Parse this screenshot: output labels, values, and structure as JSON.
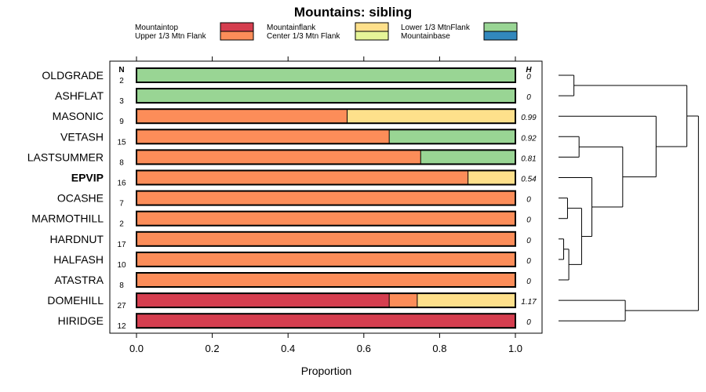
{
  "chart_data": {
    "type": "bar",
    "orientation": "horizontal-stacked",
    "title": "Mountains: sibling",
    "xlabel": "Proportion",
    "xlim": [
      0,
      1
    ],
    "xticks": [
      0.0,
      0.2,
      0.4,
      0.6,
      0.8,
      1.0
    ],
    "xtick_labels": [
      "0.0",
      "0.2",
      "0.4",
      "0.6",
      "0.8",
      "1.0"
    ],
    "n_header": "N",
    "h_header": "H",
    "highlight": "EPVIP",
    "legend_position": "top",
    "series": [
      {
        "name": "Mountaintop",
        "color": "#d53e4f"
      },
      {
        "name": "Upper 1/3 Mtn Flank",
        "color": "#fc8d59"
      },
      {
        "name": "Mountainflank",
        "color": "#fee08b"
      },
      {
        "name": "Center 1/3 Mtn Flank",
        "color": "#e6f598"
      },
      {
        "name": "Lower 1/3 MtnFlank",
        "color": "#99d594"
      },
      {
        "name": "Mountainbase",
        "color": "#3288bd"
      }
    ],
    "rows": [
      {
        "label": "OLDGRADE",
        "n": "2",
        "h": "0",
        "values": [
          0,
          0,
          0,
          0,
          1,
          0
        ]
      },
      {
        "label": "ASHFLAT",
        "n": "3",
        "h": "0",
        "values": [
          0,
          0,
          0,
          0,
          1,
          0
        ]
      },
      {
        "label": "MASONIC",
        "n": "9",
        "h": "0.99",
        "values": [
          0,
          0.556,
          0.444,
          0,
          0,
          0
        ]
      },
      {
        "label": "VETASH",
        "n": "15",
        "h": "0.92",
        "values": [
          0,
          0.667,
          0,
          0,
          0.333,
          0
        ]
      },
      {
        "label": "LASTSUMMER",
        "n": "8",
        "h": "0.81",
        "values": [
          0,
          0.75,
          0,
          0,
          0.25,
          0
        ]
      },
      {
        "label": "EPVIP",
        "n": "16",
        "h": "0.54",
        "values": [
          0,
          0.875,
          0.125,
          0,
          0,
          0
        ]
      },
      {
        "label": "OCASHE",
        "n": "7",
        "h": "0",
        "values": [
          0,
          1,
          0,
          0,
          0,
          0
        ]
      },
      {
        "label": "MARMOTHILL",
        "n": "2",
        "h": "0",
        "values": [
          0,
          1,
          0,
          0,
          0,
          0
        ]
      },
      {
        "label": "HARDNUT",
        "n": "17",
        "h": "0",
        "values": [
          0,
          1,
          0,
          0,
          0,
          0
        ]
      },
      {
        "label": "HALFASH",
        "n": "10",
        "h": "0",
        "values": [
          0,
          1,
          0,
          0,
          0,
          0
        ]
      },
      {
        "label": "ATASTRA",
        "n": "8",
        "h": "0",
        "values": [
          0,
          1,
          0,
          0,
          0,
          0
        ]
      },
      {
        "label": "DOMEHILL",
        "n": "27",
        "h": "1.17",
        "values": [
          0.667,
          0.074,
          0.259,
          0,
          0,
          0
        ]
      },
      {
        "label": "HIRIDGE",
        "n": "12",
        "h": "0",
        "values": [
          1,
          0,
          0,
          0,
          0,
          0
        ]
      }
    ],
    "dendrogram": {
      "leaves": [
        "OLDGRADE",
        "ASHFLAT",
        "MASONIC",
        "VETASH",
        "LASTSUMMER",
        "EPVIP",
        "OCASHE",
        "MARMOTHILL",
        "HARDNUT",
        "HALFASH",
        "ATASTRA",
        "DOMEHILL",
        "HIRIDGE"
      ],
      "merges": [
        {
          "a": "L0",
          "b": "L1",
          "height": 0.12
        },
        {
          "a": "L3",
          "b": "L4",
          "height": 0.16
        },
        {
          "a": "L6",
          "b": "L7",
          "height": 0.07
        },
        {
          "a": "L8",
          "b": "L9",
          "height": 0.04
        },
        {
          "a": "M3",
          "b": "L10",
          "height": 0.08
        },
        {
          "a": "M2",
          "b": "M4",
          "height": 0.18
        },
        {
          "a": "L5",
          "b": "M5",
          "height": 0.26
        },
        {
          "a": "M1",
          "b": "M6",
          "height": 0.5
        },
        {
          "a": "L2",
          "b": "M7",
          "height": 0.76
        },
        {
          "a": "M0",
          "b": "M8",
          "height": 1.0
        },
        {
          "a": "L11",
          "b": "L12",
          "height": 0.52
        },
        {
          "a": "M9",
          "b": "M10",
          "height": 1.09
        }
      ],
      "max_height": 1.1
    }
  }
}
